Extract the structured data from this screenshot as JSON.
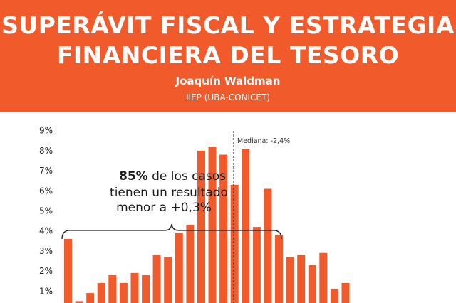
{
  "header": {
    "title_line1": "SUPERÁVIT FISCAL Y ESTRATEGIA",
    "title_line2": "FINANCIERA DEL TESORO",
    "author": "Joaquín Waldman",
    "affiliation": "IIEP (UBA-CONICET)"
  },
  "colors": {
    "accent": "#f15a2b",
    "bar": "#f15a2b",
    "text": "#1c1c1c"
  },
  "chart_data": {
    "type": "bar",
    "title": "",
    "xlabel": "",
    "ylabel": "",
    "ylim": [
      0,
      9
    ],
    "y_ticks": [
      "1%",
      "2%",
      "3%",
      "4%",
      "5%",
      "6%",
      "7%",
      "8%",
      "9%"
    ],
    "values": [
      3.6,
      0.5,
      0.9,
      1.4,
      1.8,
      1.4,
      1.9,
      1.8,
      2.8,
      2.7,
      3.9,
      4.3,
      8.0,
      8.2,
      7.8,
      6.3,
      8.1,
      4.2,
      6.1,
      3.8,
      2.7,
      2.8,
      2.3,
      2.9,
      1.1,
      1.4
    ],
    "median_label": "Mediana: -2,4%",
    "annotation": {
      "bold": "85%",
      "line1_rest": " de los casos",
      "line2": "tienen un resultado",
      "line3": "menor a +0,3%"
    }
  }
}
